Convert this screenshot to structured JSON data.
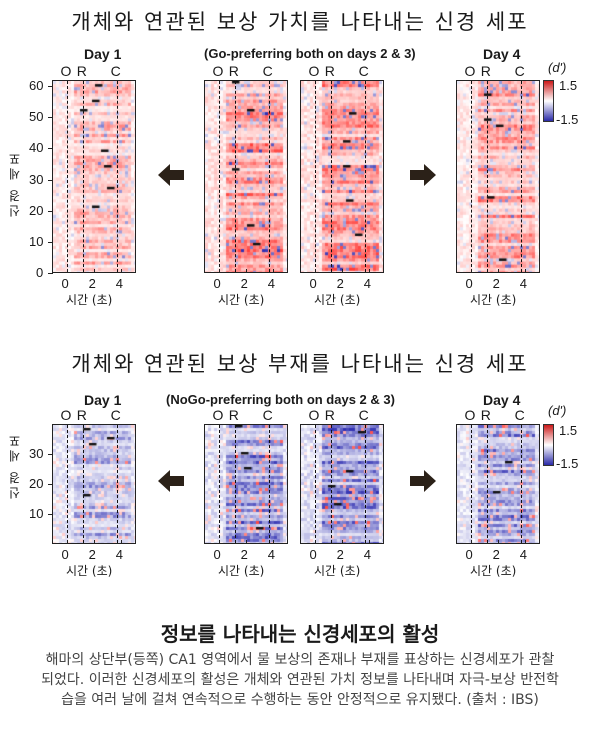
{
  "section1": {
    "title": "개체와 연관된 보상 가치를 나타내는 신경 세포",
    "panel_titles": [
      "Day 1",
      "(Go-preferring both on days 2 & 3)",
      "Day 4"
    ],
    "event_labels": [
      "O",
      "R",
      "C"
    ],
    "yticks": [
      "0",
      "10",
      "20",
      "30",
      "40",
      "50",
      "60"
    ],
    "ylabel": "신경 세포",
    "xticks": [
      "0",
      "2",
      "4"
    ],
    "xlabel": "시간 (초)",
    "colorbar": {
      "unit": "(d')",
      "max": "1.5",
      "min": "-1.5"
    },
    "neuron_count": 62,
    "dominant_sign": "positive"
  },
  "section2": {
    "title": "개체와 연관된 보상 부재를 나타내는 신경 세포",
    "panel_titles": [
      "Day 1",
      "(NoGo-preferring both on days 2 & 3)",
      "Day 4"
    ],
    "event_labels": [
      "O",
      "R",
      "C"
    ],
    "yticks": [
      "10",
      "20",
      "30"
    ],
    "ylabel": "신경 세포",
    "xticks": [
      "0",
      "2",
      "4"
    ],
    "xlabel": "시간 (초)",
    "colorbar": {
      "unit": "(d')",
      "max": "1.5",
      "min": "-1.5"
    },
    "neuron_count": 40,
    "dominant_sign": "negative"
  },
  "colors": {
    "positive": "#d42a2a",
    "negative": "#2b2bb0",
    "arrow": "#2b2118"
  },
  "bottom": {
    "title": "정보를 나타내는 신경세포의 활성",
    "caption": "해마의 상단부(등쪽) CA1 영역에서 물 보상의 존재나 부재를 표상하는 신경세포가 관찰되었다. 이러한 신경세포의 활성은 개체와 연관된 가치 정보를 나타내며 자극-보상 반전학습을 여러 날에 걸쳐 연속적으로 수행하는 동안 안정적으로 유지됐다. (출처 : IBS)"
  }
}
